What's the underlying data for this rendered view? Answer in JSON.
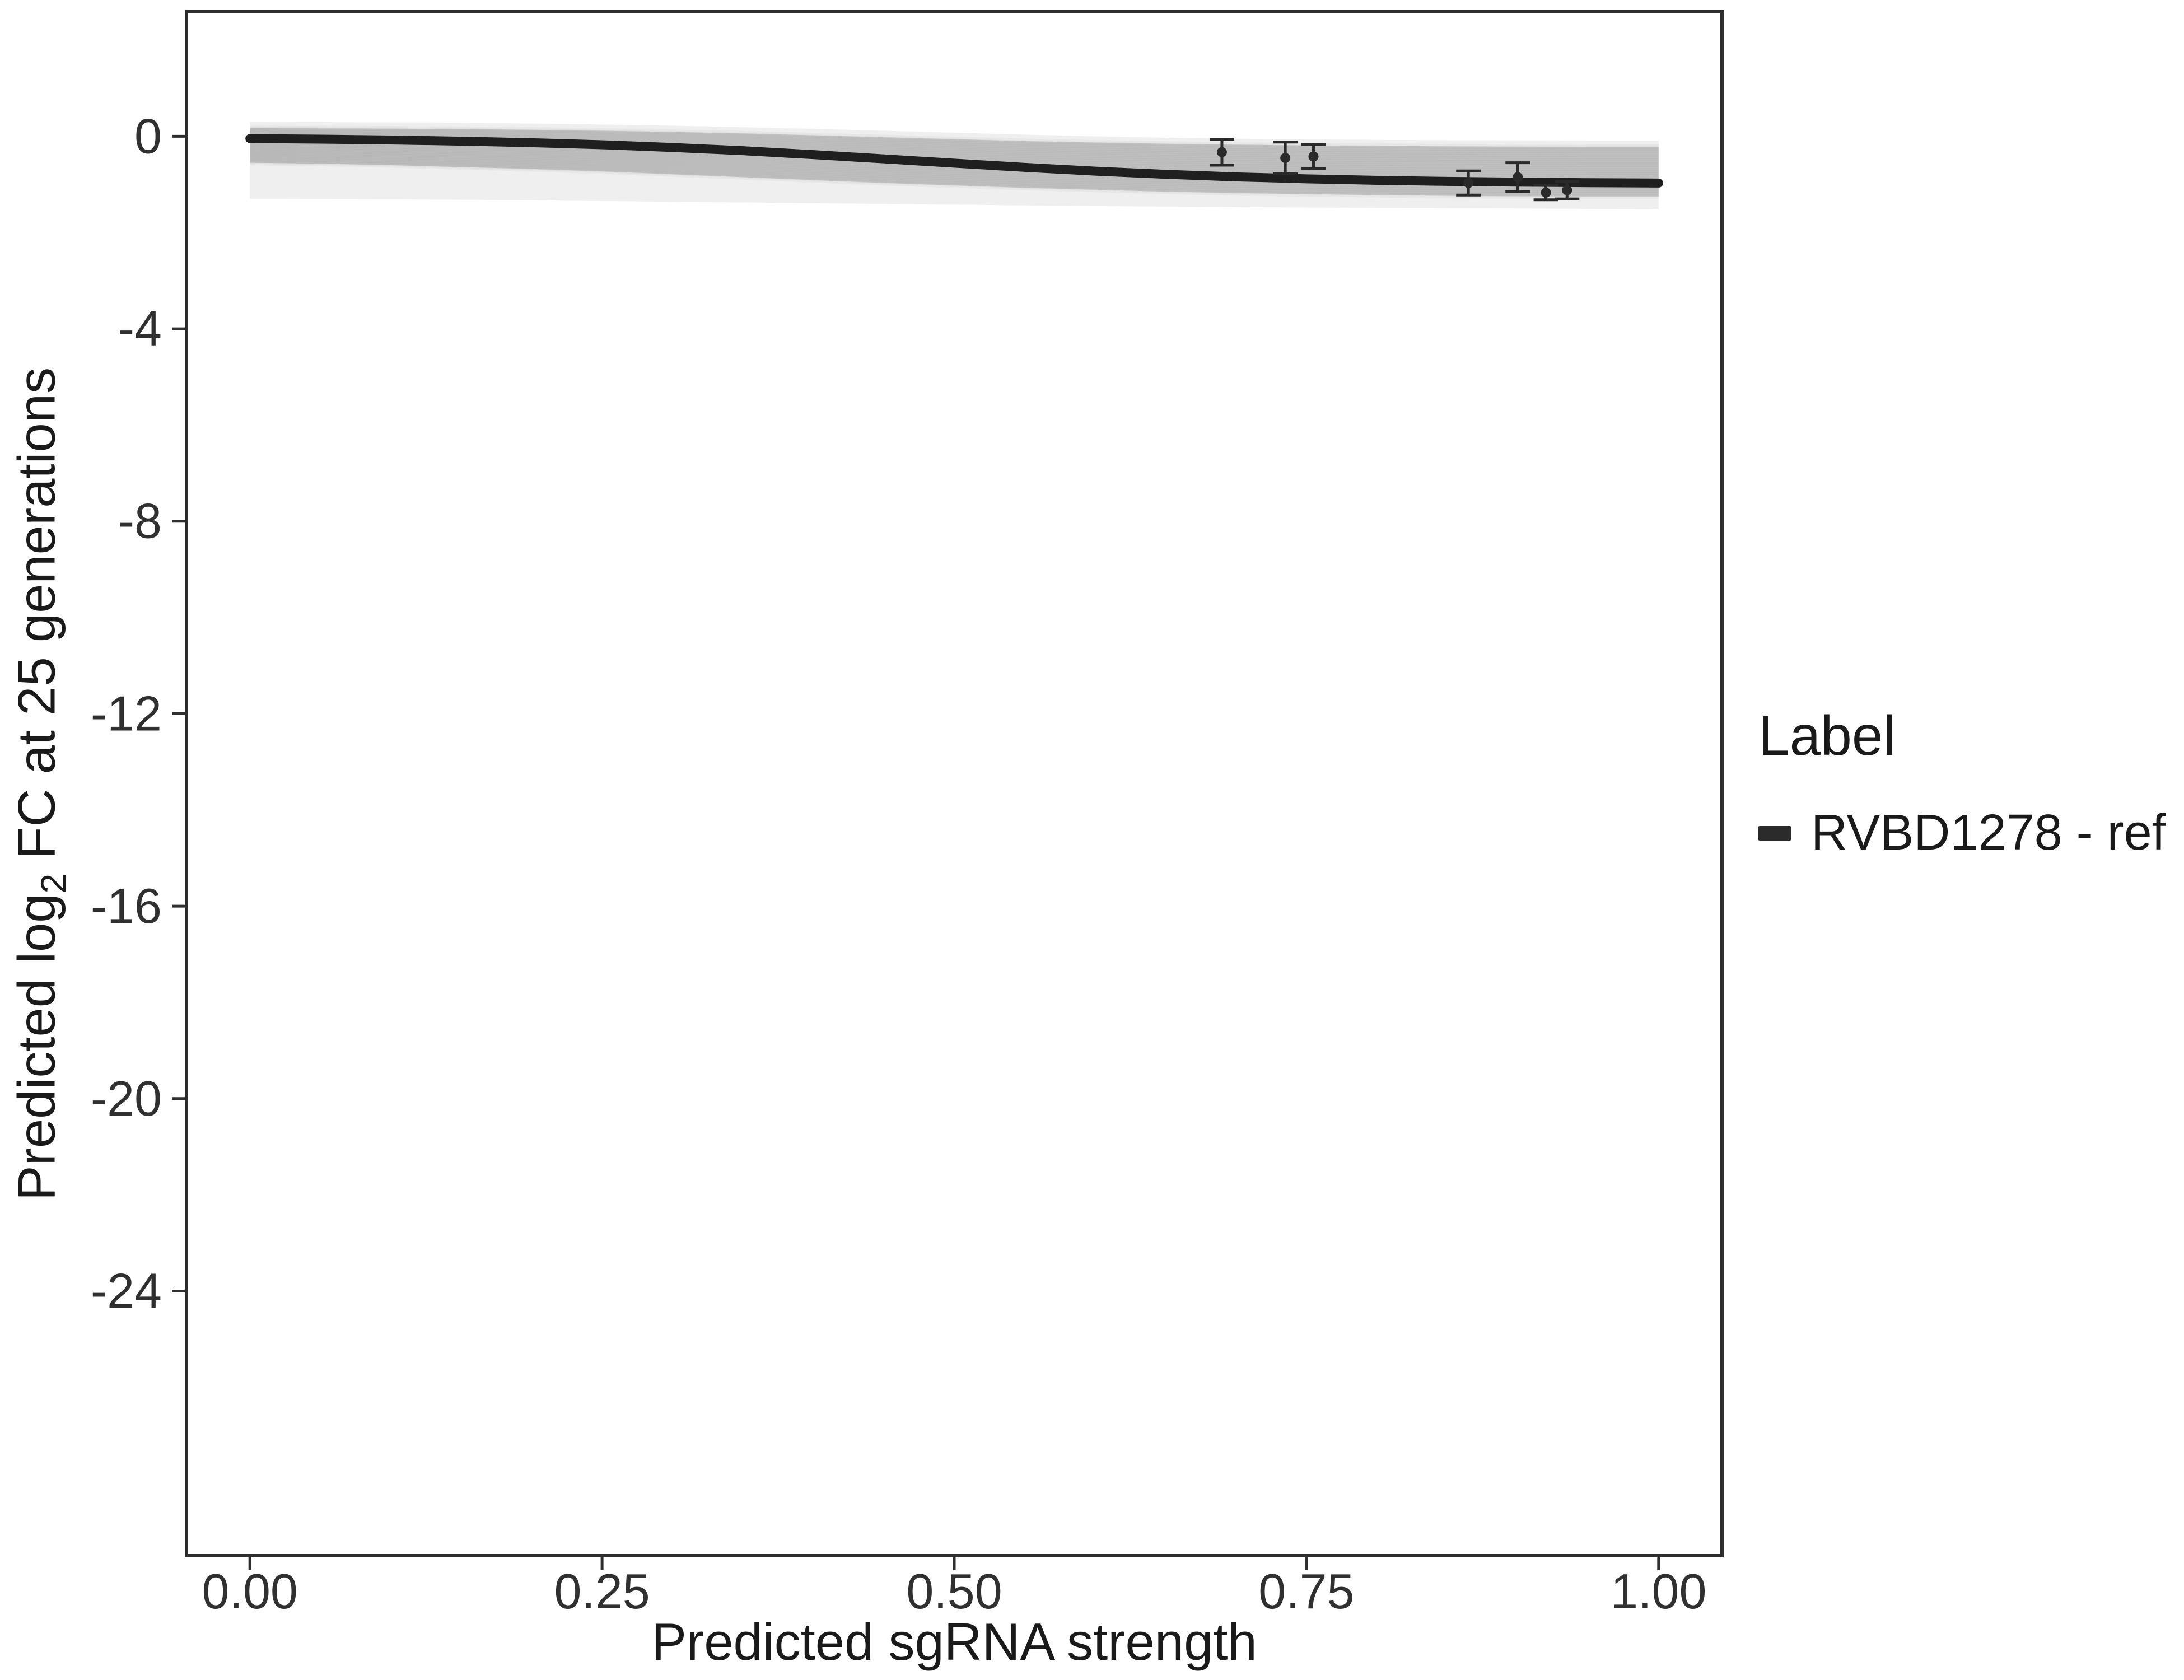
{
  "legend": {
    "title": "Label",
    "items": [
      {
        "label": "RVBD1278 - ref",
        "color": "#2b2b2b"
      }
    ]
  },
  "chart_data": {
    "type": "line",
    "title": "",
    "xlabel": "Predicted sgRNA strength",
    "ylabel_parts": [
      "Predicted  log",
      "2",
      " FC at 25 generations"
    ],
    "legend_position": "right",
    "grid": false,
    "xlim": [
      -0.045,
      1.045
    ],
    "ylim": [
      -29.5,
      2.6
    ],
    "x_ticks": [
      "0.00",
      "0.25",
      "0.50",
      "0.75",
      "1.00"
    ],
    "x_tick_values": [
      0,
      0.25,
      0.5,
      0.75,
      1
    ],
    "y_ticks": [
      "0",
      "-4",
      "-8",
      "-12",
      "-16",
      "-20",
      "-24"
    ],
    "y_tick_values": [
      0,
      -4,
      -8,
      -12,
      -16,
      -20,
      -24
    ],
    "colors": {
      "line": "#1f1f1f",
      "axis": "#2e2e2e",
      "text": "#303030",
      "point": "#2a2a2a"
    },
    "series": [
      {
        "name": "RVBD1278 - ref",
        "color": "#1f1f1f",
        "x": [
          0,
          0.05,
          0.1,
          0.15,
          0.2,
          0.25,
          0.3,
          0.35,
          0.4,
          0.45,
          0.5,
          0.55,
          0.6,
          0.65,
          0.7,
          0.75,
          0.8,
          0.85,
          0.9,
          0.95,
          1.0
        ],
        "y": [
          -0.048,
          -0.06,
          -0.077,
          -0.101,
          -0.133,
          -0.176,
          -0.232,
          -0.3,
          -0.381,
          -0.469,
          -0.559,
          -0.646,
          -0.724,
          -0.79,
          -0.843,
          -0.884,
          -0.915,
          -0.937,
          -0.953,
          -0.964,
          -0.972
        ]
      }
    ],
    "band": {
      "x": [
        0,
        0.05,
        0.1,
        0.15,
        0.2,
        0.25,
        0.3,
        0.35,
        0.4,
        0.45,
        0.5,
        0.55,
        0.6,
        0.65,
        0.7,
        0.75,
        0.8,
        0.85,
        0.9,
        0.95,
        1.0
      ],
      "upper": [
        0.17,
        0.165,
        0.16,
        0.15,
        0.135,
        0.115,
        0.09,
        0.06,
        0.02,
        -0.02,
        -0.06,
        -0.1,
        -0.13,
        -0.155,
        -0.175,
        -0.19,
        -0.2,
        -0.21,
        -0.215,
        -0.22,
        -0.22
      ],
      "lower": [
        -0.55,
        -0.57,
        -0.6,
        -0.64,
        -0.68,
        -0.73,
        -0.79,
        -0.85,
        -0.91,
        -0.97,
        -1.02,
        -1.07,
        -1.11,
        -1.15,
        -1.18,
        -1.2,
        -1.22,
        -1.235,
        -1.245,
        -1.25,
        -1.25
      ],
      "color": "#a6a6a6",
      "opacity": 0.5,
      "ensemble_lines": 26,
      "line_color": "#7d7d7d",
      "line_opacity": 0.06
    },
    "outer_band": {
      "x": [
        0,
        0.05,
        0.1,
        0.15,
        0.2,
        0.25,
        0.3,
        0.35,
        0.4,
        0.45,
        0.5,
        0.55,
        0.6,
        0.65,
        0.7,
        0.75,
        0.8,
        0.85,
        0.9,
        0.95,
        1.0
      ],
      "upper": [
        0.3,
        0.295,
        0.29,
        0.28,
        0.265,
        0.245,
        0.22,
        0.19,
        0.155,
        0.115,
        0.075,
        0.035,
        0.0,
        -0.03,
        -0.05,
        -0.065,
        -0.075,
        -0.08,
        -0.085,
        -0.09,
        -0.09
      ],
      "lower": [
        -1.3,
        -1.305,
        -1.31,
        -1.32,
        -1.33,
        -1.345,
        -1.36,
        -1.375,
        -1.39,
        -1.405,
        -1.42,
        -1.435,
        -1.45,
        -1.46,
        -1.47,
        -1.48,
        -1.49,
        -1.495,
        -1.5,
        -1.51,
        -1.52
      ],
      "color": "#d2d2d2",
      "opacity": 0.35
    },
    "points": [
      {
        "x": 0.69,
        "y": -0.33,
        "err": 0.27
      },
      {
        "x": 0.735,
        "y": -0.45,
        "err": 0.33
      },
      {
        "x": 0.755,
        "y": -0.42,
        "err": 0.25
      },
      {
        "x": 0.865,
        "y": -0.97,
        "err": 0.25
      },
      {
        "x": 0.9,
        "y": -0.85,
        "err": 0.3
      },
      {
        "x": 0.92,
        "y": -1.17,
        "err": 0.15
      },
      {
        "x": 0.935,
        "y": -1.12,
        "err": 0.18
      }
    ]
  }
}
